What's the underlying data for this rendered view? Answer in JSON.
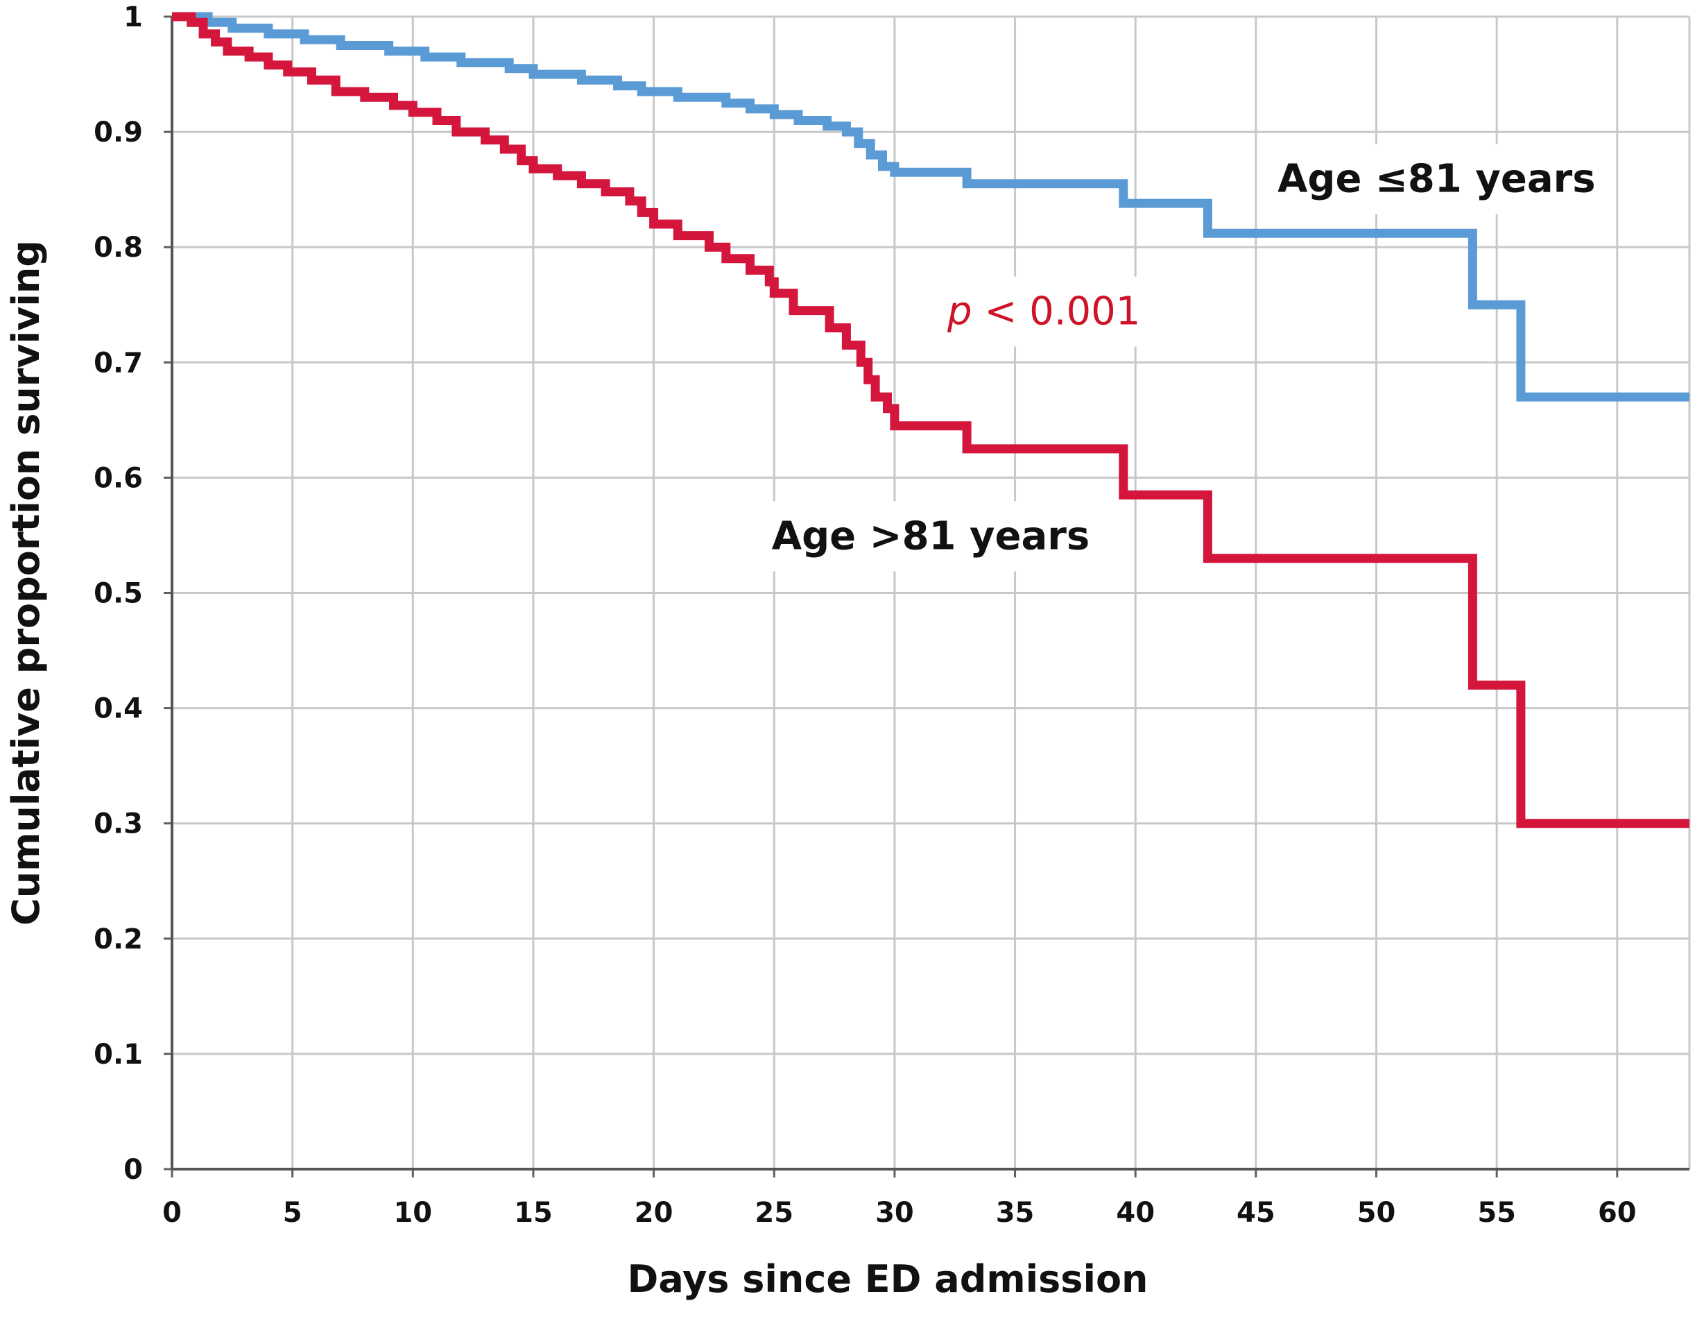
{
  "chart_data": {
    "type": "line",
    "step": true,
    "title": "",
    "xlabel": "Days since ED admission",
    "ylabel": "Cumulative proportion surviving",
    "xlim": [
      0,
      63
    ],
    "ylim": [
      0,
      1
    ],
    "x_ticks": [
      0,
      5,
      10,
      15,
      20,
      25,
      30,
      35,
      40,
      45,
      50,
      55,
      60
    ],
    "x_tick_labels": [
      "0",
      "5",
      "10",
      "15",
      "20",
      "25",
      "30",
      "35",
      "40",
      "45",
      "50",
      "55",
      "60"
    ],
    "y_ticks": [
      0,
      0.1,
      0.2,
      0.3,
      0.4,
      0.5,
      0.6,
      0.7,
      0.8,
      0.9,
      1
    ],
    "y_tick_labels": [
      "0",
      "0.1",
      "0.2",
      "0.3",
      "0.4",
      "0.5",
      "0.6",
      "0.7",
      "0.8",
      "0.9",
      "1"
    ],
    "grid": true,
    "series": [
      {
        "name": "Age ≤81 years",
        "color": "#5b9bd5",
        "points": [
          [
            0,
            1.0
          ],
          [
            1.5,
            0.995
          ],
          [
            2.5,
            0.99
          ],
          [
            4,
            0.985
          ],
          [
            5.5,
            0.98
          ],
          [
            7,
            0.975
          ],
          [
            9,
            0.97
          ],
          [
            10.5,
            0.965
          ],
          [
            12,
            0.96
          ],
          [
            14,
            0.955
          ],
          [
            15,
            0.95
          ],
          [
            17,
            0.945
          ],
          [
            18.5,
            0.94
          ],
          [
            19.5,
            0.935
          ],
          [
            21,
            0.93
          ],
          [
            23,
            0.925
          ],
          [
            24,
            0.92
          ],
          [
            25,
            0.915
          ],
          [
            26,
            0.91
          ],
          [
            27.2,
            0.905
          ],
          [
            28,
            0.9
          ],
          [
            28.5,
            0.89
          ],
          [
            29,
            0.88
          ],
          [
            29.5,
            0.87
          ],
          [
            30,
            0.865
          ],
          [
            33,
            0.855
          ],
          [
            39.5,
            0.838
          ],
          [
            43,
            0.812
          ],
          [
            54,
            0.75
          ],
          [
            56,
            0.67
          ],
          [
            63,
            0.67
          ]
        ]
      },
      {
        "name": "Age >81 years",
        "color": "#d4153c",
        "points": [
          [
            0,
            1.0
          ],
          [
            0.8,
            0.995
          ],
          [
            1.3,
            0.985
          ],
          [
            1.8,
            0.978
          ],
          [
            2.3,
            0.97
          ],
          [
            3.2,
            0.965
          ],
          [
            4,
            0.958
          ],
          [
            4.8,
            0.952
          ],
          [
            5.8,
            0.945
          ],
          [
            6.8,
            0.935
          ],
          [
            8,
            0.93
          ],
          [
            9.2,
            0.923
          ],
          [
            10,
            0.917
          ],
          [
            11,
            0.91
          ],
          [
            11.8,
            0.9
          ],
          [
            13,
            0.893
          ],
          [
            13.8,
            0.885
          ],
          [
            14.5,
            0.875
          ],
          [
            15,
            0.868
          ],
          [
            16,
            0.862
          ],
          [
            17,
            0.855
          ],
          [
            18,
            0.848
          ],
          [
            19,
            0.84
          ],
          [
            19.5,
            0.83
          ],
          [
            20,
            0.82
          ],
          [
            21,
            0.81
          ],
          [
            22.3,
            0.8
          ],
          [
            23,
            0.79
          ],
          [
            24,
            0.78
          ],
          [
            24.8,
            0.77
          ],
          [
            25,
            0.76
          ],
          [
            25.8,
            0.745
          ],
          [
            27.3,
            0.73
          ],
          [
            28,
            0.715
          ],
          [
            28.6,
            0.7
          ],
          [
            28.9,
            0.685
          ],
          [
            29.2,
            0.67
          ],
          [
            29.7,
            0.66
          ],
          [
            30,
            0.645
          ],
          [
            33,
            0.625
          ],
          [
            39.5,
            0.585
          ],
          [
            43,
            0.53
          ],
          [
            54,
            0.42
          ],
          [
            56,
            0.3
          ],
          [
            63,
            0.3
          ]
        ]
      }
    ],
    "annotations": [
      {
        "text": "Age ≤81 years",
        "x": 52.5,
        "y": 0.86
      },
      {
        "text": "Age >81 years",
        "x": 31.5,
        "y": 0.55
      }
    ],
    "p_value": {
      "p_label": "p",
      "rest": " < 0.001",
      "x": 36.2,
      "y": 0.745,
      "color": "#cc1426"
    }
  }
}
